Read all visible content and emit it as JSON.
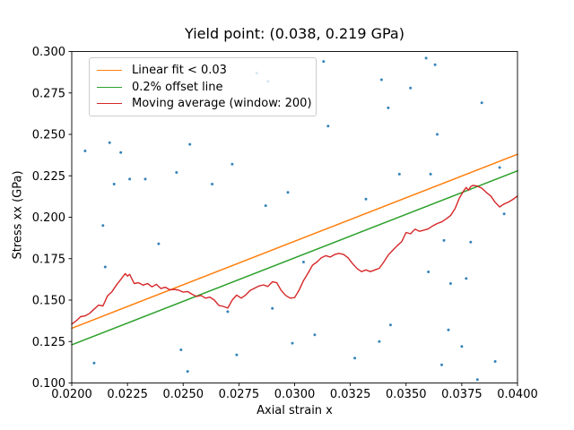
{
  "figure": {
    "title": "Yield point: (0.038, 0.219 GPa)",
    "xlabel": "Axial strain x",
    "ylabel": "Stress xx (GPa)"
  },
  "legend": {
    "items": [
      {
        "name": "linear-fit",
        "label": "Linear fit < 0.03",
        "color": "#ff7f0e"
      },
      {
        "name": "offset-line",
        "label": "0.2% offset line",
        "color": "#2ca02c"
      },
      {
        "name": "moving-average",
        "label": "Moving average (window: 200)",
        "color": "#d62728"
      }
    ]
  },
  "chart_data": {
    "type": "scatter",
    "title": "Yield point: (0.038, 0.219 GPa)",
    "xlabel": "Axial strain x",
    "ylabel": "Stress xx (GPa)",
    "xlim": [
      0.02,
      0.04
    ],
    "ylim": [
      0.1,
      0.3
    ],
    "grid": false,
    "legend_position": "upper left",
    "yield_point": {
      "x": 0.038,
      "y": 0.219,
      "units": "GPa"
    },
    "x_ticks": [
      0.02,
      0.0225,
      0.025,
      0.0275,
      0.03,
      0.0325,
      0.035,
      0.0375,
      0.04
    ],
    "x_tick_labels": [
      "0.0200",
      "0.0225",
      "0.0250",
      "0.0275",
      "0.0300",
      "0.0325",
      "0.0350",
      "0.0375",
      "0.0400"
    ],
    "y_ticks": [
      0.1,
      0.125,
      0.15,
      0.175,
      0.2,
      0.225,
      0.25,
      0.275,
      0.3
    ],
    "y_tick_labels": [
      "0.100",
      "0.125",
      "0.150",
      "0.175",
      "0.200",
      "0.225",
      "0.250",
      "0.275",
      "0.300"
    ],
    "axis_color": "#000000",
    "series": [
      {
        "name": "raw-data-scatter",
        "type": "scatter",
        "color": "#1f77b4",
        "marker_radius": 1.5,
        "points": [
          [
            0.0206,
            0.24
          ],
          [
            0.021,
            0.112
          ],
          [
            0.0214,
            0.195
          ],
          [
            0.0215,
            0.17
          ],
          [
            0.0217,
            0.245
          ],
          [
            0.0219,
            0.22
          ],
          [
            0.0222,
            0.239
          ],
          [
            0.0226,
            0.223
          ],
          [
            0.0233,
            0.223
          ],
          [
            0.0239,
            0.184
          ],
          [
            0.0247,
            0.227
          ],
          [
            0.0249,
            0.12
          ],
          [
            0.0252,
            0.107
          ],
          [
            0.0253,
            0.244
          ],
          [
            0.0263,
            0.22
          ],
          [
            0.027,
            0.143
          ],
          [
            0.0272,
            0.232
          ],
          [
            0.0274,
            0.117
          ],
          [
            0.0283,
            0.287
          ],
          [
            0.0287,
            0.207
          ],
          [
            0.0288,
            0.282
          ],
          [
            0.029,
            0.145
          ],
          [
            0.0297,
            0.215
          ],
          [
            0.0299,
            0.124
          ],
          [
            0.0304,
            0.173
          ],
          [
            0.0309,
            0.129
          ],
          [
            0.0313,
            0.294
          ],
          [
            0.0315,
            0.255
          ],
          [
            0.0327,
            0.115
          ],
          [
            0.0332,
            0.211
          ],
          [
            0.0338,
            0.125
          ],
          [
            0.0339,
            0.283
          ],
          [
            0.0342,
            0.266
          ],
          [
            0.0343,
            0.135
          ],
          [
            0.0347,
            0.226
          ],
          [
            0.0352,
            0.278
          ],
          [
            0.0359,
            0.296
          ],
          [
            0.036,
            0.167
          ],
          [
            0.0361,
            0.226
          ],
          [
            0.0363,
            0.292
          ],
          [
            0.0364,
            0.25
          ],
          [
            0.0366,
            0.111
          ],
          [
            0.0367,
            0.186
          ],
          [
            0.0369,
            0.132
          ],
          [
            0.037,
            0.16
          ],
          [
            0.0375,
            0.122
          ],
          [
            0.0377,
            0.163
          ],
          [
            0.0379,
            0.185
          ],
          [
            0.0382,
            0.102
          ],
          [
            0.0384,
            0.269
          ],
          [
            0.039,
            0.113
          ],
          [
            0.0392,
            0.23
          ],
          [
            0.0394,
            0.202
          ]
        ]
      },
      {
        "name": "linear-fit-line",
        "type": "line",
        "label": "Linear fit < 0.03",
        "color": "#ff7f0e",
        "width": 1.5,
        "points": [
          [
            0.02,
            0.133
          ],
          [
            0.04,
            0.238
          ]
        ]
      },
      {
        "name": "offset-line",
        "type": "line",
        "label": "0.2% offset line",
        "color": "#2ca02c",
        "width": 1.5,
        "points": [
          [
            0.02,
            0.123
          ],
          [
            0.04,
            0.228
          ]
        ]
      },
      {
        "name": "moving-average-line",
        "type": "line",
        "label": "Moving average (window: 200)",
        "color": "#d62728",
        "width": 1.4,
        "points": [
          [
            0.02,
            0.1355
          ],
          [
            0.0202,
            0.1375
          ],
          [
            0.0204,
            0.14
          ],
          [
            0.0206,
            0.1405
          ],
          [
            0.0208,
            0.142
          ],
          [
            0.021,
            0.1445
          ],
          [
            0.0212,
            0.147
          ],
          [
            0.0214,
            0.1465
          ],
          [
            0.0216,
            0.1525
          ],
          [
            0.0218,
            0.155
          ],
          [
            0.022,
            0.159
          ],
          [
            0.0222,
            0.1625
          ],
          [
            0.0224,
            0.166
          ],
          [
            0.0225,
            0.1645
          ],
          [
            0.0226,
            0.1655
          ],
          [
            0.0228,
            0.16
          ],
          [
            0.023,
            0.1605
          ],
          [
            0.0232,
            0.159
          ],
          [
            0.0234,
            0.16
          ],
          [
            0.0236,
            0.158
          ],
          [
            0.0238,
            0.1595
          ],
          [
            0.024,
            0.157
          ],
          [
            0.0242,
            0.1578
          ],
          [
            0.0244,
            0.1562
          ],
          [
            0.0246,
            0.1565
          ],
          [
            0.0248,
            0.156
          ],
          [
            0.025,
            0.1548
          ],
          [
            0.0252,
            0.1552
          ],
          [
            0.0254,
            0.1535
          ],
          [
            0.0256,
            0.1522
          ],
          [
            0.0258,
            0.1528
          ],
          [
            0.026,
            0.1512
          ],
          [
            0.0262,
            0.1518
          ],
          [
            0.0264,
            0.15
          ],
          [
            0.0266,
            0.1468
          ],
          [
            0.0268,
            0.1462
          ],
          [
            0.027,
            0.1452
          ],
          [
            0.0271,
            0.1475
          ],
          [
            0.0272,
            0.15
          ],
          [
            0.0274,
            0.153
          ],
          [
            0.0276,
            0.1512
          ],
          [
            0.0278,
            0.153
          ],
          [
            0.028,
            0.1558
          ],
          [
            0.0282,
            0.1572
          ],
          [
            0.0284,
            0.1585
          ],
          [
            0.0286,
            0.1592
          ],
          [
            0.0288,
            0.1582
          ],
          [
            0.029,
            0.161
          ],
          [
            0.0292,
            0.1605
          ],
          [
            0.0294,
            0.1558
          ],
          [
            0.0296,
            0.1528
          ],
          [
            0.0298,
            0.1512
          ],
          [
            0.03,
            0.1515
          ],
          [
            0.0302,
            0.156
          ],
          [
            0.0304,
            0.1618
          ],
          [
            0.0306,
            0.1662
          ],
          [
            0.0308,
            0.171
          ],
          [
            0.031,
            0.173
          ],
          [
            0.0312,
            0.1755
          ],
          [
            0.0314,
            0.1768
          ],
          [
            0.0316,
            0.176
          ],
          [
            0.0318,
            0.1775
          ],
          [
            0.032,
            0.1782
          ],
          [
            0.0322,
            0.1775
          ],
          [
            0.0324,
            0.1755
          ],
          [
            0.0326,
            0.172
          ],
          [
            0.0328,
            0.169
          ],
          [
            0.033,
            0.1672
          ],
          [
            0.0332,
            0.1682
          ],
          [
            0.0334,
            0.1672
          ],
          [
            0.0336,
            0.1682
          ],
          [
            0.0338,
            0.1692
          ],
          [
            0.034,
            0.173
          ],
          [
            0.0342,
            0.1772
          ],
          [
            0.0344,
            0.18
          ],
          [
            0.0346,
            0.1828
          ],
          [
            0.0348,
            0.1852
          ],
          [
            0.035,
            0.1908
          ],
          [
            0.0352,
            0.19
          ],
          [
            0.0354,
            0.1928
          ],
          [
            0.0356,
            0.1915
          ],
          [
            0.0358,
            0.1922
          ],
          [
            0.036,
            0.193
          ],
          [
            0.0362,
            0.1948
          ],
          [
            0.0364,
            0.1962
          ],
          [
            0.0366,
            0.1972
          ],
          [
            0.0368,
            0.199
          ],
          [
            0.037,
            0.201
          ],
          [
            0.0372,
            0.2052
          ],
          [
            0.0374,
            0.2118
          ],
          [
            0.0376,
            0.2162
          ],
          [
            0.0377,
            0.218
          ],
          [
            0.0378,
            0.2162
          ],
          [
            0.0379,
            0.2185
          ],
          [
            0.038,
            0.2192
          ],
          [
            0.0382,
            0.2188
          ],
          [
            0.0384,
            0.2175
          ],
          [
            0.0386,
            0.215
          ],
          [
            0.0388,
            0.2128
          ],
          [
            0.039,
            0.209
          ],
          [
            0.0392,
            0.2062
          ],
          [
            0.0394,
            0.208
          ],
          [
            0.0396,
            0.2092
          ],
          [
            0.0398,
            0.2108
          ],
          [
            0.04,
            0.2128
          ]
        ]
      }
    ]
  }
}
